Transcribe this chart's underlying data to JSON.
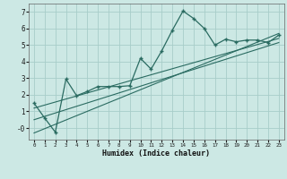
{
  "title": "",
  "xlabel": "Humidex (Indice chaleur)",
  "ylabel": "",
  "bg_color": "#cce8e4",
  "grid_color": "#a8cdc9",
  "line_color": "#2a6b61",
  "xlim": [
    -0.5,
    23.5
  ],
  "ylim": [
    -0.7,
    7.5
  ],
  "xticks": [
    0,
    1,
    2,
    3,
    4,
    5,
    6,
    7,
    8,
    9,
    10,
    11,
    12,
    13,
    14,
    15,
    16,
    17,
    18,
    19,
    20,
    21,
    22,
    23
  ],
  "yticks": [
    0,
    1,
    2,
    3,
    4,
    5,
    6,
    7
  ],
  "ytick_labels": [
    "-0",
    "1",
    "2",
    "3",
    "4",
    "5",
    "6",
    "7"
  ],
  "main_x": [
    0,
    1,
    2,
    3,
    4,
    5,
    6,
    7,
    8,
    9,
    10,
    11,
    12,
    13,
    14,
    15,
    16,
    17,
    18,
    19,
    20,
    21,
    22,
    23
  ],
  "main_y": [
    1.5,
    0.6,
    -0.25,
    2.95,
    1.95,
    2.2,
    2.5,
    2.5,
    2.5,
    2.55,
    4.2,
    3.55,
    4.65,
    5.9,
    7.05,
    6.6,
    6.0,
    5.0,
    5.35,
    5.2,
    5.3,
    5.3,
    5.15,
    5.6
  ],
  "trend1_x": [
    0,
    23
  ],
  "trend1_y": [
    1.2,
    5.4
  ],
  "trend2_x": [
    0,
    23
  ],
  "trend2_y": [
    0.5,
    5.15
  ],
  "trend3_x": [
    0,
    23
  ],
  "trend3_y": [
    -0.3,
    5.7
  ]
}
